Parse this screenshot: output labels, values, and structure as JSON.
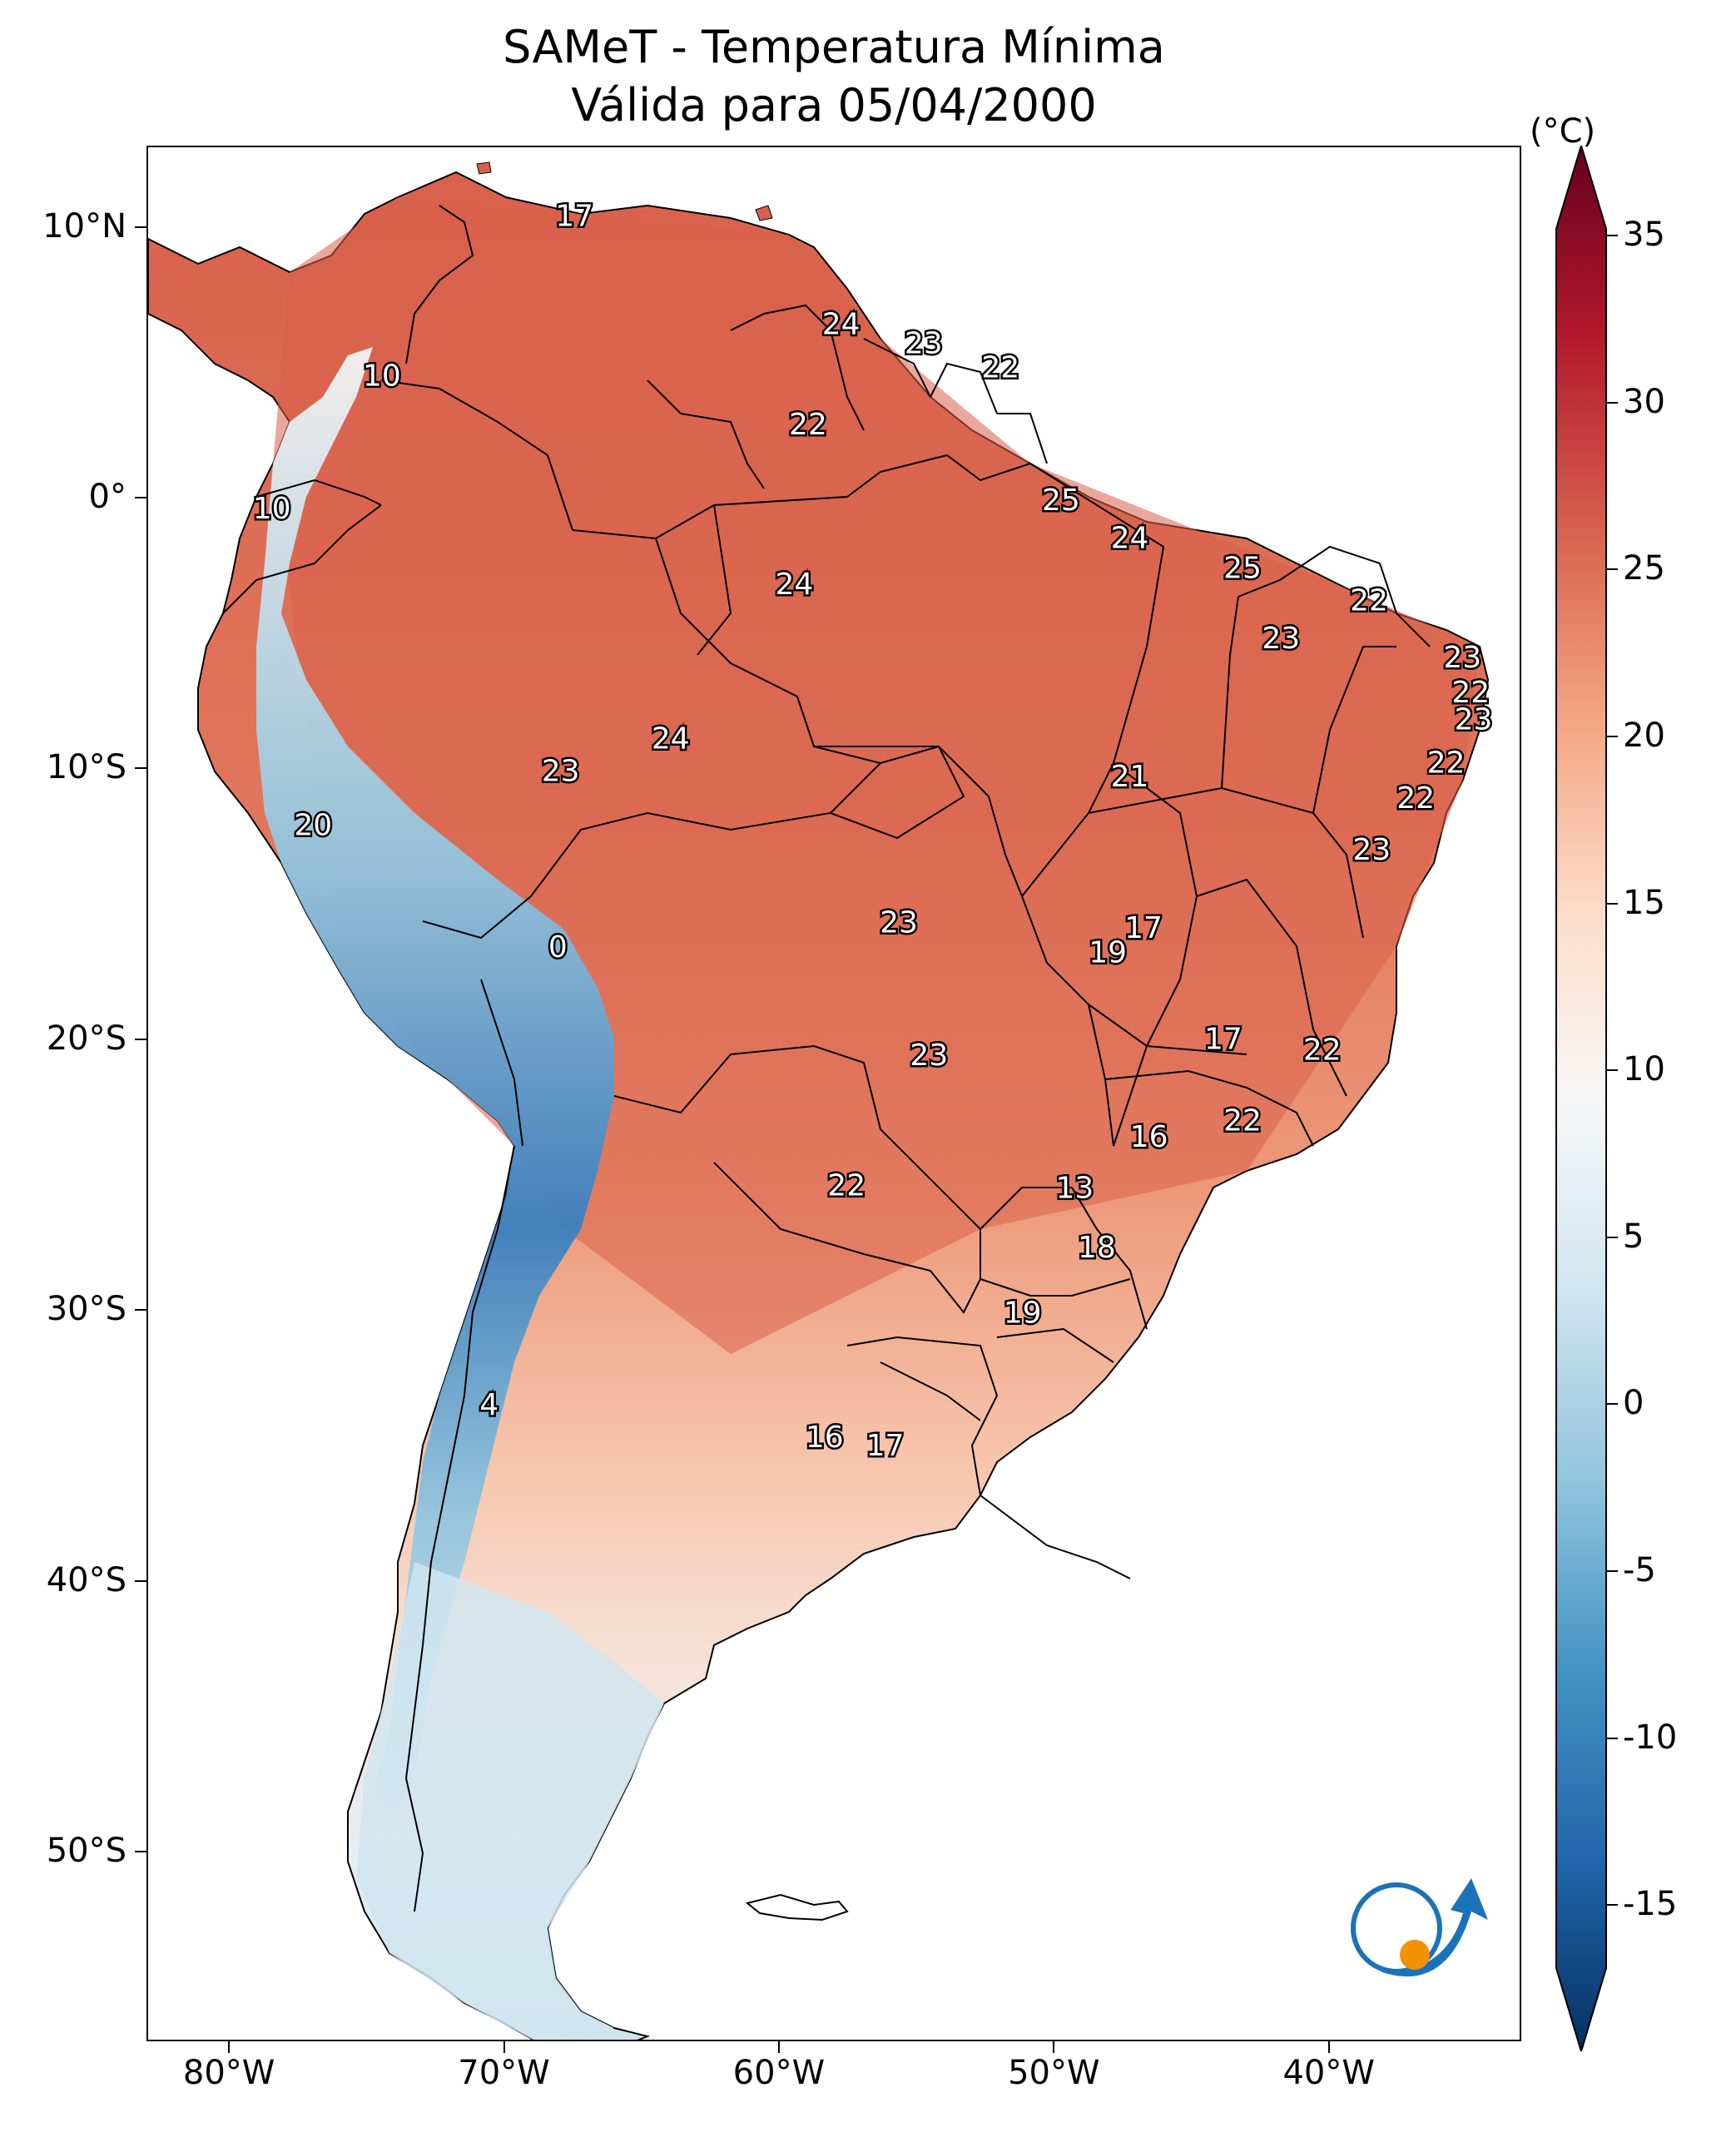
{
  "title": "SAMeT - Temperatura Mínima",
  "subtitle": "Válida para 05/04/2000",
  "colorbar": {
    "unit": "(°C)",
    "ticks": [
      "35",
      "30",
      "25",
      "20",
      "15",
      "10",
      "5",
      "0",
      "-5",
      "-10",
      "-15"
    ],
    "range": [
      -15,
      35
    ],
    "colormap": "RdBu_r",
    "extend": "both"
  },
  "axes": {
    "latitude_labels": [
      "10°N",
      "0°",
      "10°S",
      "20°S",
      "30°S",
      "40°S",
      "50°S"
    ],
    "longitude_labels": [
      "80°W",
      "70°W",
      "60°W",
      "50°W",
      "40°W"
    ]
  },
  "colors": {
    "hot": "#67001f",
    "warm": "#d6604d",
    "mild": "#f4a582",
    "neutral": "#f7f7f7",
    "cool": "#92c5de",
    "cold": "#2166ac",
    "frigid": "#053061",
    "logo_blue": "#1a73b8",
    "logo_orange": "#f39200"
  },
  "station_values": [
    {
      "text": "17",
      "lon": -67.5,
      "lat": 10.5
    },
    {
      "text": "24",
      "lon": -57.8,
      "lat": 6.5
    },
    {
      "text": "23",
      "lon": -54.8,
      "lat": 5.8
    },
    {
      "text": "22",
      "lon": -52.0,
      "lat": 4.9
    },
    {
      "text": "10",
      "lon": -74.5,
      "lat": 4.6
    },
    {
      "text": "22",
      "lon": -59.0,
      "lat": 2.8
    },
    {
      "text": "10",
      "lon": -78.5,
      "lat": -0.3
    },
    {
      "text": "25",
      "lon": -49.8,
      "lat": 0.0
    },
    {
      "text": "24",
      "lon": -47.3,
      "lat": -1.4
    },
    {
      "text": "25",
      "lon": -43.2,
      "lat": -2.5
    },
    {
      "text": "24",
      "lon": -59.5,
      "lat": -3.1
    },
    {
      "text": "22",
      "lon": -38.6,
      "lat": -3.7
    },
    {
      "text": "23",
      "lon": -41.8,
      "lat": -5.1
    },
    {
      "text": "23",
      "lon": -35.2,
      "lat": -5.8
    },
    {
      "text": "22",
      "lon": -34.9,
      "lat": -7.1
    },
    {
      "text": "23",
      "lon": -34.8,
      "lat": -8.1
    },
    {
      "text": "24",
      "lon": -64.0,
      "lat": -8.8
    },
    {
      "text": "23",
      "lon": -68.0,
      "lat": -10.0
    },
    {
      "text": "21",
      "lon": -47.3,
      "lat": -10.2
    },
    {
      "text": "22",
      "lon": -35.8,
      "lat": -9.7
    },
    {
      "text": "22",
      "lon": -36.9,
      "lat": -11.0
    },
    {
      "text": "20",
      "lon": -77.0,
      "lat": -12.0
    },
    {
      "text": "23",
      "lon": -38.5,
      "lat": -12.9
    },
    {
      "text": "23",
      "lon": -55.7,
      "lat": -15.6
    },
    {
      "text": "17",
      "lon": -46.8,
      "lat": -15.8
    },
    {
      "text": "19",
      "lon": -48.1,
      "lat": -16.7
    },
    {
      "text": "0",
      "lon": -68.1,
      "lat": -16.5
    },
    {
      "text": "17",
      "lon": -43.9,
      "lat": -19.9
    },
    {
      "text": "22",
      "lon": -40.3,
      "lat": -20.3
    },
    {
      "text": "23",
      "lon": -54.6,
      "lat": -20.5
    },
    {
      "text": "22",
      "lon": -43.2,
      "lat": -22.9
    },
    {
      "text": "16",
      "lon": -46.6,
      "lat": -23.5
    },
    {
      "text": "22",
      "lon": -57.6,
      "lat": -25.3
    },
    {
      "text": "13",
      "lon": -49.3,
      "lat": -25.4
    },
    {
      "text": "18",
      "lon": -48.5,
      "lat": -27.6
    },
    {
      "text": "19",
      "lon": -51.2,
      "lat": -30.0
    },
    {
      "text": "4",
      "lon": -70.6,
      "lat": -33.4
    },
    {
      "text": "16",
      "lon": -58.4,
      "lat": -34.6
    },
    {
      "text": "17",
      "lon": -56.2,
      "lat": -34.9
    }
  ]
}
